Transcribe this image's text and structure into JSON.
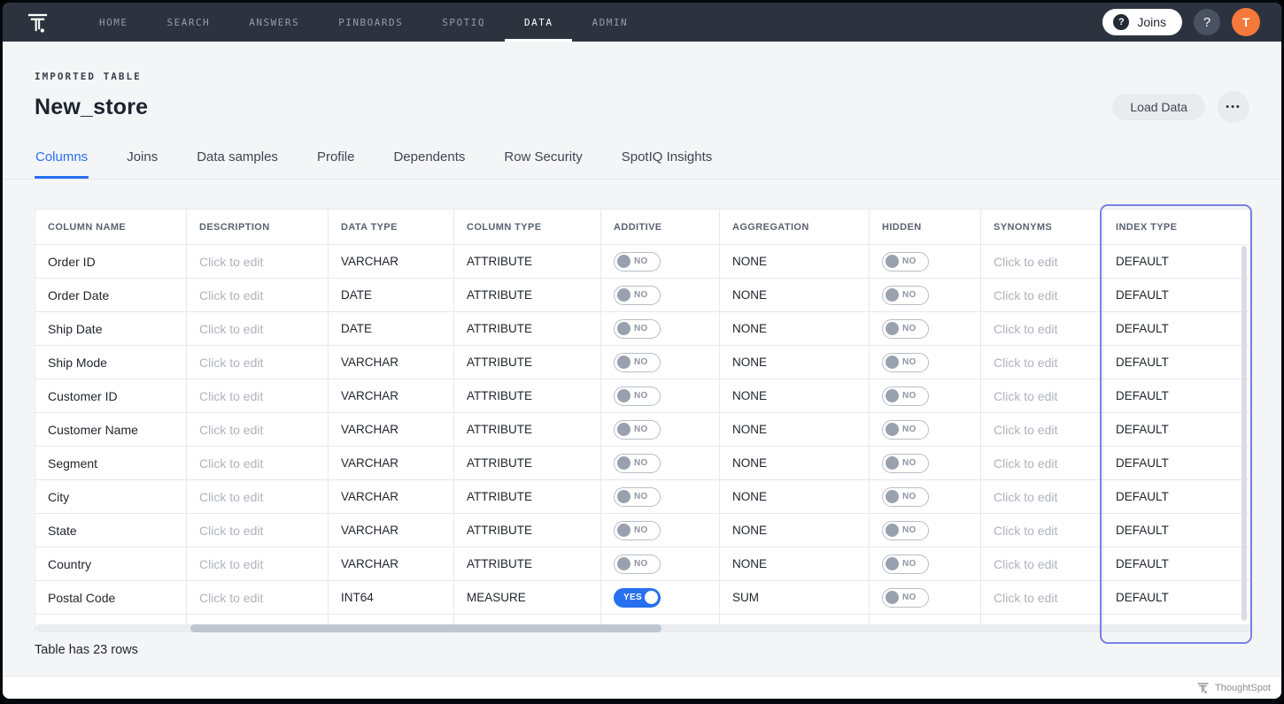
{
  "nav": {
    "brand": "ThoughtSpot",
    "items": [
      {
        "label": "HOME",
        "active": false
      },
      {
        "label": "SEARCH",
        "active": false
      },
      {
        "label": "ANSWERS",
        "active": false
      },
      {
        "label": "PINBOARDS",
        "active": false
      },
      {
        "label": "SPOTIQ",
        "active": false
      },
      {
        "label": "DATA",
        "active": true
      },
      {
        "label": "ADMIN",
        "active": false
      }
    ],
    "joins_button_label": "Joins",
    "joins_icon": "?",
    "help_icon": "?",
    "avatar_initial": "T"
  },
  "header": {
    "eyebrow": "IMPORTED TABLE",
    "title": "New_store",
    "load_data_label": "Load Data",
    "more_label": "•••"
  },
  "tabs": [
    {
      "label": "Columns",
      "active": true
    },
    {
      "label": "Joins",
      "active": false
    },
    {
      "label": "Data samples",
      "active": false
    },
    {
      "label": "Profile",
      "active": false
    },
    {
      "label": "Dependents",
      "active": false
    },
    {
      "label": "Row Security",
      "active": false
    },
    {
      "label": "SpotIQ Insights",
      "active": false
    }
  ],
  "table": {
    "columns": [
      "COLUMN NAME",
      "DESCRIPTION",
      "DATA TYPE",
      "COLUMN TYPE",
      "ADDITIVE",
      "AGGREGATION",
      "HIDDEN",
      "SYNONYMS",
      "INDEX TYPE"
    ],
    "placeholder": "Click to edit",
    "toggle_labels": {
      "on": "YES",
      "off": "NO"
    },
    "rows": [
      {
        "name": "Order ID",
        "description": "Click to edit",
        "data_type": "VARCHAR",
        "column_type": "ATTRIBUTE",
        "additive": false,
        "aggregation": "NONE",
        "hidden": false,
        "synonyms": "Click to edit",
        "index_type": "DEFAULT"
      },
      {
        "name": "Order Date",
        "description": "Click to edit",
        "data_type": "DATE",
        "column_type": "ATTRIBUTE",
        "additive": false,
        "aggregation": "NONE",
        "hidden": false,
        "synonyms": "Click to edit",
        "index_type": "DEFAULT"
      },
      {
        "name": "Ship Date",
        "description": "Click to edit",
        "data_type": "DATE",
        "column_type": "ATTRIBUTE",
        "additive": false,
        "aggregation": "NONE",
        "hidden": false,
        "synonyms": "Click to edit",
        "index_type": "DEFAULT"
      },
      {
        "name": "Ship Mode",
        "description": "Click to edit",
        "data_type": "VARCHAR",
        "column_type": "ATTRIBUTE",
        "additive": false,
        "aggregation": "NONE",
        "hidden": false,
        "synonyms": "Click to edit",
        "index_type": "DEFAULT"
      },
      {
        "name": "Customer ID",
        "description": "Click to edit",
        "data_type": "VARCHAR",
        "column_type": "ATTRIBUTE",
        "additive": false,
        "aggregation": "NONE",
        "hidden": false,
        "synonyms": "Click to edit",
        "index_type": "DEFAULT"
      },
      {
        "name": "Customer Name",
        "description": "Click to edit",
        "data_type": "VARCHAR",
        "column_type": "ATTRIBUTE",
        "additive": false,
        "aggregation": "NONE",
        "hidden": false,
        "synonyms": "Click to edit",
        "index_type": "DEFAULT"
      },
      {
        "name": "Segment",
        "description": "Click to edit",
        "data_type": "VARCHAR",
        "column_type": "ATTRIBUTE",
        "additive": false,
        "aggregation": "NONE",
        "hidden": false,
        "synonyms": "Click to edit",
        "index_type": "DEFAULT"
      },
      {
        "name": "City",
        "description": "Click to edit",
        "data_type": "VARCHAR",
        "column_type": "ATTRIBUTE",
        "additive": false,
        "aggregation": "NONE",
        "hidden": false,
        "synonyms": "Click to edit",
        "index_type": "DEFAULT"
      },
      {
        "name": "State",
        "description": "Click to edit",
        "data_type": "VARCHAR",
        "column_type": "ATTRIBUTE",
        "additive": false,
        "aggregation": "NONE",
        "hidden": false,
        "synonyms": "Click to edit",
        "index_type": "DEFAULT"
      },
      {
        "name": "Country",
        "description": "Click to edit",
        "data_type": "VARCHAR",
        "column_type": "ATTRIBUTE",
        "additive": false,
        "aggregation": "NONE",
        "hidden": false,
        "synonyms": "Click to edit",
        "index_type": "DEFAULT"
      },
      {
        "name": "Postal Code",
        "description": "Click to edit",
        "data_type": "INT64",
        "column_type": "MEASURE",
        "additive": true,
        "aggregation": "SUM",
        "hidden": false,
        "synonyms": "Click to edit",
        "index_type": "DEFAULT"
      }
    ]
  },
  "status": {
    "row_count_text": "Table has 23 rows"
  },
  "footer": {
    "brand": "ThoughtSpot"
  },
  "colors": {
    "nav_bg": "#2c333f",
    "accent_blue": "#2770ef",
    "toggle_on_blue": "#2770ef",
    "highlight_purple": "#7b7fe8",
    "avatar_orange": "#f5793b"
  }
}
